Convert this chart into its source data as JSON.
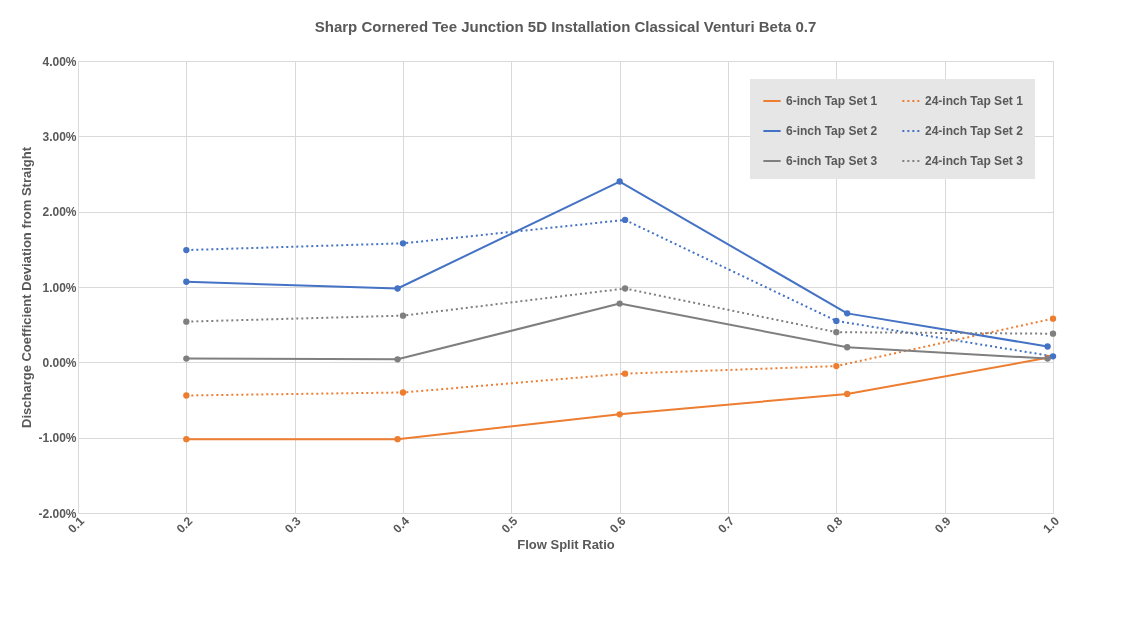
{
  "chart_data": {
    "type": "line",
    "title": "Sharp Cornered Tee Junction 5D Installation Classical Venturi  Beta 0.7",
    "xlabel": "Flow Split Ratio",
    "ylabel": "Discharge Coefficient Deviation from Straight",
    "xlim": [
      0.1,
      1.0
    ],
    "xticks": [
      0.1,
      0.2,
      0.3,
      0.4,
      0.5,
      0.6,
      0.7,
      0.8,
      0.9,
      {
        "value": 1.0,
        "label": "1.0"
      }
    ],
    "ylim": [
      -2,
      4
    ],
    "yticks": [
      {
        "value": -2,
        "label": "-2.00%"
      },
      {
        "value": -1,
        "label": "-1.00%"
      },
      {
        "value": 0,
        "label": "0.00%"
      },
      {
        "value": 1,
        "label": "1.00%"
      },
      {
        "value": 2,
        "label": "2.00%"
      },
      {
        "value": 3,
        "label": "3.00%"
      },
      {
        "value": 4,
        "label": "4.00%"
      }
    ],
    "grid": true,
    "legend": "top right",
    "marker": "circle",
    "series": [
      {
        "name": "6-inch Tap Set 1",
        "color": "#ed7d31",
        "line_style": "solid",
        "x": [
          0.2,
          0.395,
          0.6,
          0.81,
          0.995
        ],
        "values": [
          -1.02,
          -1.02,
          -0.69,
          -0.42,
          0.06
        ]
      },
      {
        "name": "24-inch Tap Set 1",
        "color": "#ed7d31",
        "line_style": "dotted",
        "x": [
          0.2,
          0.4,
          0.605,
          0.8,
          1.0
        ],
        "values": [
          -0.44,
          -0.4,
          -0.15,
          -0.05,
          0.58
        ]
      },
      {
        "name": "6-inch Tap Set 2",
        "color": "#4472c4",
        "line_style": "solid",
        "x": [
          0.2,
          0.395,
          0.6,
          0.81,
          0.995
        ],
        "values": [
          1.07,
          0.98,
          2.4,
          0.65,
          0.21
        ]
      },
      {
        "name": "24-inch Tap Set 2",
        "color": "#4472c4",
        "line_style": "dotted",
        "x": [
          0.2,
          0.4,
          0.605,
          0.8,
          1.0
        ],
        "values": [
          1.49,
          1.58,
          1.89,
          0.55,
          0.08
        ]
      },
      {
        "name": "6-inch Tap Set 3",
        "color": "#7f7f7f",
        "line_style": "solid",
        "x": [
          0.2,
          0.395,
          0.6,
          0.81,
          0.995
        ],
        "values": [
          0.05,
          0.04,
          0.78,
          0.2,
          0.05
        ]
      },
      {
        "name": "24-inch Tap Set 3",
        "color": "#7f7f7f",
        "line_style": "dotted",
        "x": [
          0.2,
          0.4,
          0.605,
          0.8,
          1.0
        ],
        "values": [
          0.54,
          0.62,
          0.98,
          0.4,
          0.38
        ]
      }
    ]
  }
}
